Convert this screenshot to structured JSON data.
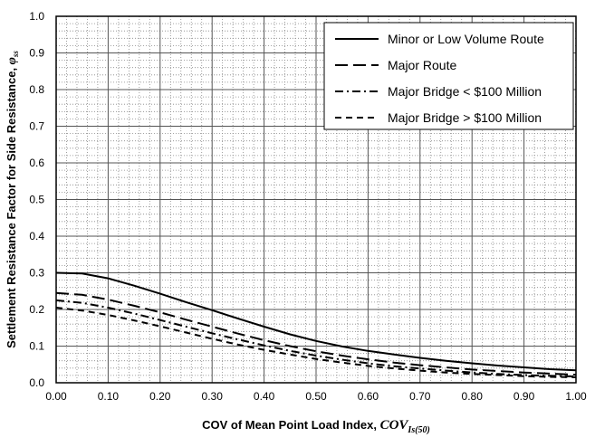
{
  "chart_data": {
    "type": "line",
    "xlabel": {
      "text": "COV of Mean Point Load Index, ",
      "sym": "COV",
      "sub": "Is(50)"
    },
    "ylabel": {
      "text": "Settlement Resistance Factor for Side Resistance, ",
      "sym": "φ",
      "sub": "ss"
    },
    "xlim": [
      0,
      1
    ],
    "ylim": [
      0,
      1
    ],
    "x_ticks": [
      "0.00",
      "0.10",
      "0.20",
      "0.30",
      "0.40",
      "0.50",
      "0.60",
      "0.70",
      "0.80",
      "0.90",
      "1.00"
    ],
    "y_ticks": [
      "0.0",
      "0.1",
      "0.2",
      "0.3",
      "0.4",
      "0.5",
      "0.6",
      "0.7",
      "0.8",
      "0.9",
      "1.0"
    ],
    "grid": "major and minor",
    "legend_position": "top-right",
    "series": [
      {
        "name": "Minor or Low Volume Route",
        "dash": "solid",
        "x": [
          0,
          0.05,
          0.1,
          0.15,
          0.2,
          0.25,
          0.3,
          0.35,
          0.4,
          0.45,
          0.5,
          0.55,
          0.6,
          0.65,
          0.7,
          0.75,
          0.8,
          0.85,
          0.9,
          0.95,
          1.0
        ],
        "y": [
          0.3,
          0.298,
          0.285,
          0.265,
          0.243,
          0.22,
          0.198,
          0.175,
          0.153,
          0.132,
          0.114,
          0.099,
          0.087,
          0.077,
          0.068,
          0.06,
          0.053,
          0.047,
          0.042,
          0.037,
          0.034
        ]
      },
      {
        "name": "Major Route",
        "dash": "long-dash",
        "x": [
          0,
          0.05,
          0.1,
          0.15,
          0.2,
          0.25,
          0.3,
          0.35,
          0.4,
          0.45,
          0.5,
          0.55,
          0.6,
          0.65,
          0.7,
          0.75,
          0.8,
          0.85,
          0.9,
          0.95,
          1.0
        ],
        "y": [
          0.245,
          0.24,
          0.227,
          0.21,
          0.192,
          0.172,
          0.153,
          0.134,
          0.116,
          0.1,
          0.086,
          0.074,
          0.064,
          0.055,
          0.048,
          0.042,
          0.036,
          0.032,
          0.028,
          0.025,
          0.022
        ]
      },
      {
        "name": "Major Bridge < $100 Million",
        "dash": "dash-dot",
        "x": [
          0,
          0.05,
          0.1,
          0.15,
          0.2,
          0.25,
          0.3,
          0.35,
          0.4,
          0.45,
          0.5,
          0.55,
          0.6,
          0.65,
          0.7,
          0.75,
          0.8,
          0.85,
          0.9,
          0.95,
          1.0
        ],
        "y": [
          0.225,
          0.218,
          0.205,
          0.189,
          0.171,
          0.153,
          0.135,
          0.118,
          0.102,
          0.087,
          0.074,
          0.063,
          0.053,
          0.045,
          0.039,
          0.033,
          0.028,
          0.024,
          0.021,
          0.019,
          0.017
        ]
      },
      {
        "name": "Major Bridge > $100 Million",
        "dash": "short-dash",
        "x": [
          0,
          0.05,
          0.1,
          0.15,
          0.2,
          0.25,
          0.3,
          0.35,
          0.4,
          0.45,
          0.5,
          0.55,
          0.6,
          0.65,
          0.7,
          0.75,
          0.8,
          0.85,
          0.9,
          0.95,
          1.0
        ],
        "y": [
          0.205,
          0.197,
          0.185,
          0.17,
          0.154,
          0.137,
          0.12,
          0.104,
          0.09,
          0.077,
          0.065,
          0.055,
          0.046,
          0.039,
          0.033,
          0.028,
          0.024,
          0.021,
          0.018,
          0.016,
          0.015
        ]
      }
    ]
  }
}
